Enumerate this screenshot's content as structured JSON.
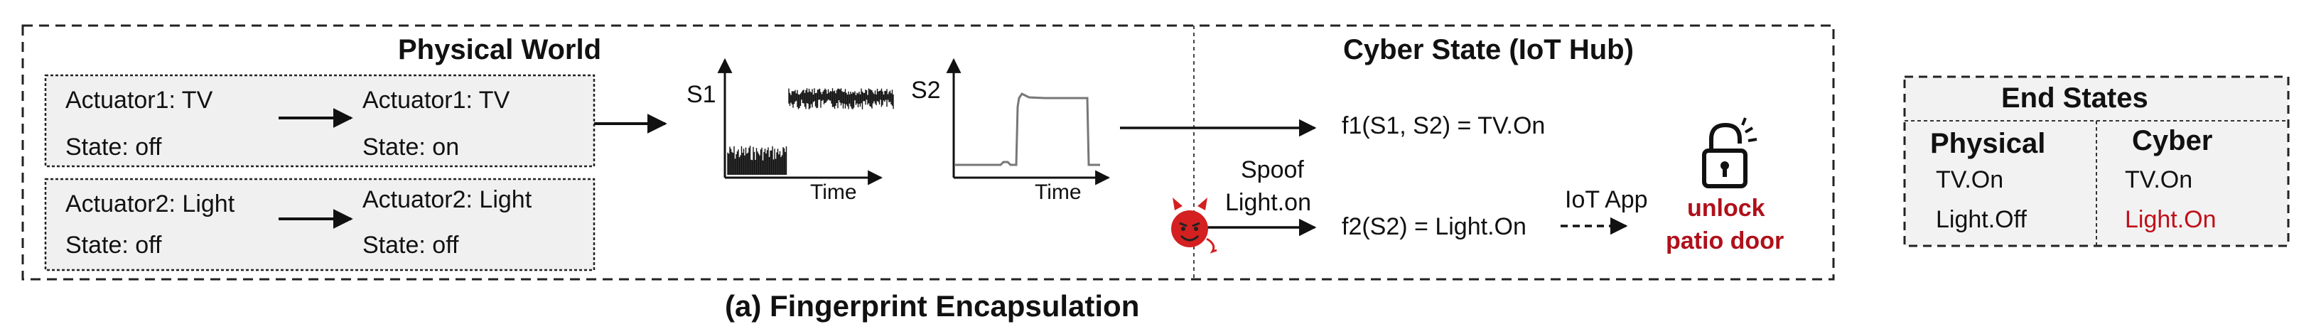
{
  "physical": {
    "title": "Physical World",
    "row1": {
      "from_actuator": "Actuator1: TV",
      "from_state": "State: off",
      "to_actuator": "Actuator1: TV",
      "to_state": "State: on"
    },
    "row2": {
      "from_actuator": "Actuator2: Light",
      "from_state": "State: off",
      "to_actuator": "Actuator2: Light",
      "to_state": "State: off"
    }
  },
  "signals": {
    "s1_label": "S1",
    "s2_label": "S2",
    "time_label": "Time"
  },
  "cyber": {
    "title": "Cyber State (IoT Hub)",
    "f1": "f1(S1, S2) = TV.On",
    "spoof_line1": "Spoof",
    "spoof_line2": "Light.on",
    "f2": "f2(S2) = Light.On",
    "iot_app": "IoT App",
    "unlock_line1": "unlock",
    "unlock_line2": "patio door"
  },
  "end_states": {
    "title": "End States",
    "physical_header": "Physical",
    "cyber_header": "Cyber",
    "physical_values": [
      "TV.On",
      "Light.Off"
    ],
    "cyber_values": [
      "TV.On",
      "Light.On"
    ]
  },
  "caption": "(a) Fingerprint Encapsulation",
  "colors": {
    "attack": "#c0101a",
    "box_fill": "#f0f0f0",
    "devil": "#d42020"
  }
}
